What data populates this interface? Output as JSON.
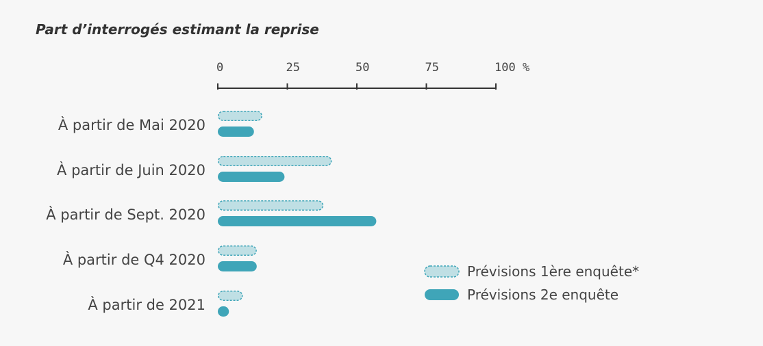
{
  "chart_data": {
    "type": "bar",
    "orientation": "horizontal",
    "title": "Part d’interrogés estimant la reprise",
    "categories": [
      "À partir de Mai 2020",
      "À partir de Juin 2020",
      "À partir de Sept. 2020",
      "À partir de Q4 2020",
      "À partir de 2021"
    ],
    "series": [
      {
        "name": "Prévisions 1ère enquête*",
        "values": [
          16,
          41,
          38,
          14,
          9
        ],
        "color": "#bfdfe4",
        "stroke": "#3fa5b8",
        "style": "dashed"
      },
      {
        "name": "Prévisions 2e enquête",
        "values": [
          13,
          24,
          57,
          14,
          4
        ],
        "color": "#3fa5b8",
        "style": "solid"
      }
    ],
    "xlim": [
      0,
      100
    ],
    "ticks": [
      {
        "value": 0,
        "label": "0"
      },
      {
        "value": 25,
        "label": "25"
      },
      {
        "value": 50,
        "label": "50"
      },
      {
        "value": 75,
        "label": "75"
      },
      {
        "value": 100,
        "label": "100 %"
      }
    ],
    "legend_position": "bottom-right",
    "grid": false
  }
}
